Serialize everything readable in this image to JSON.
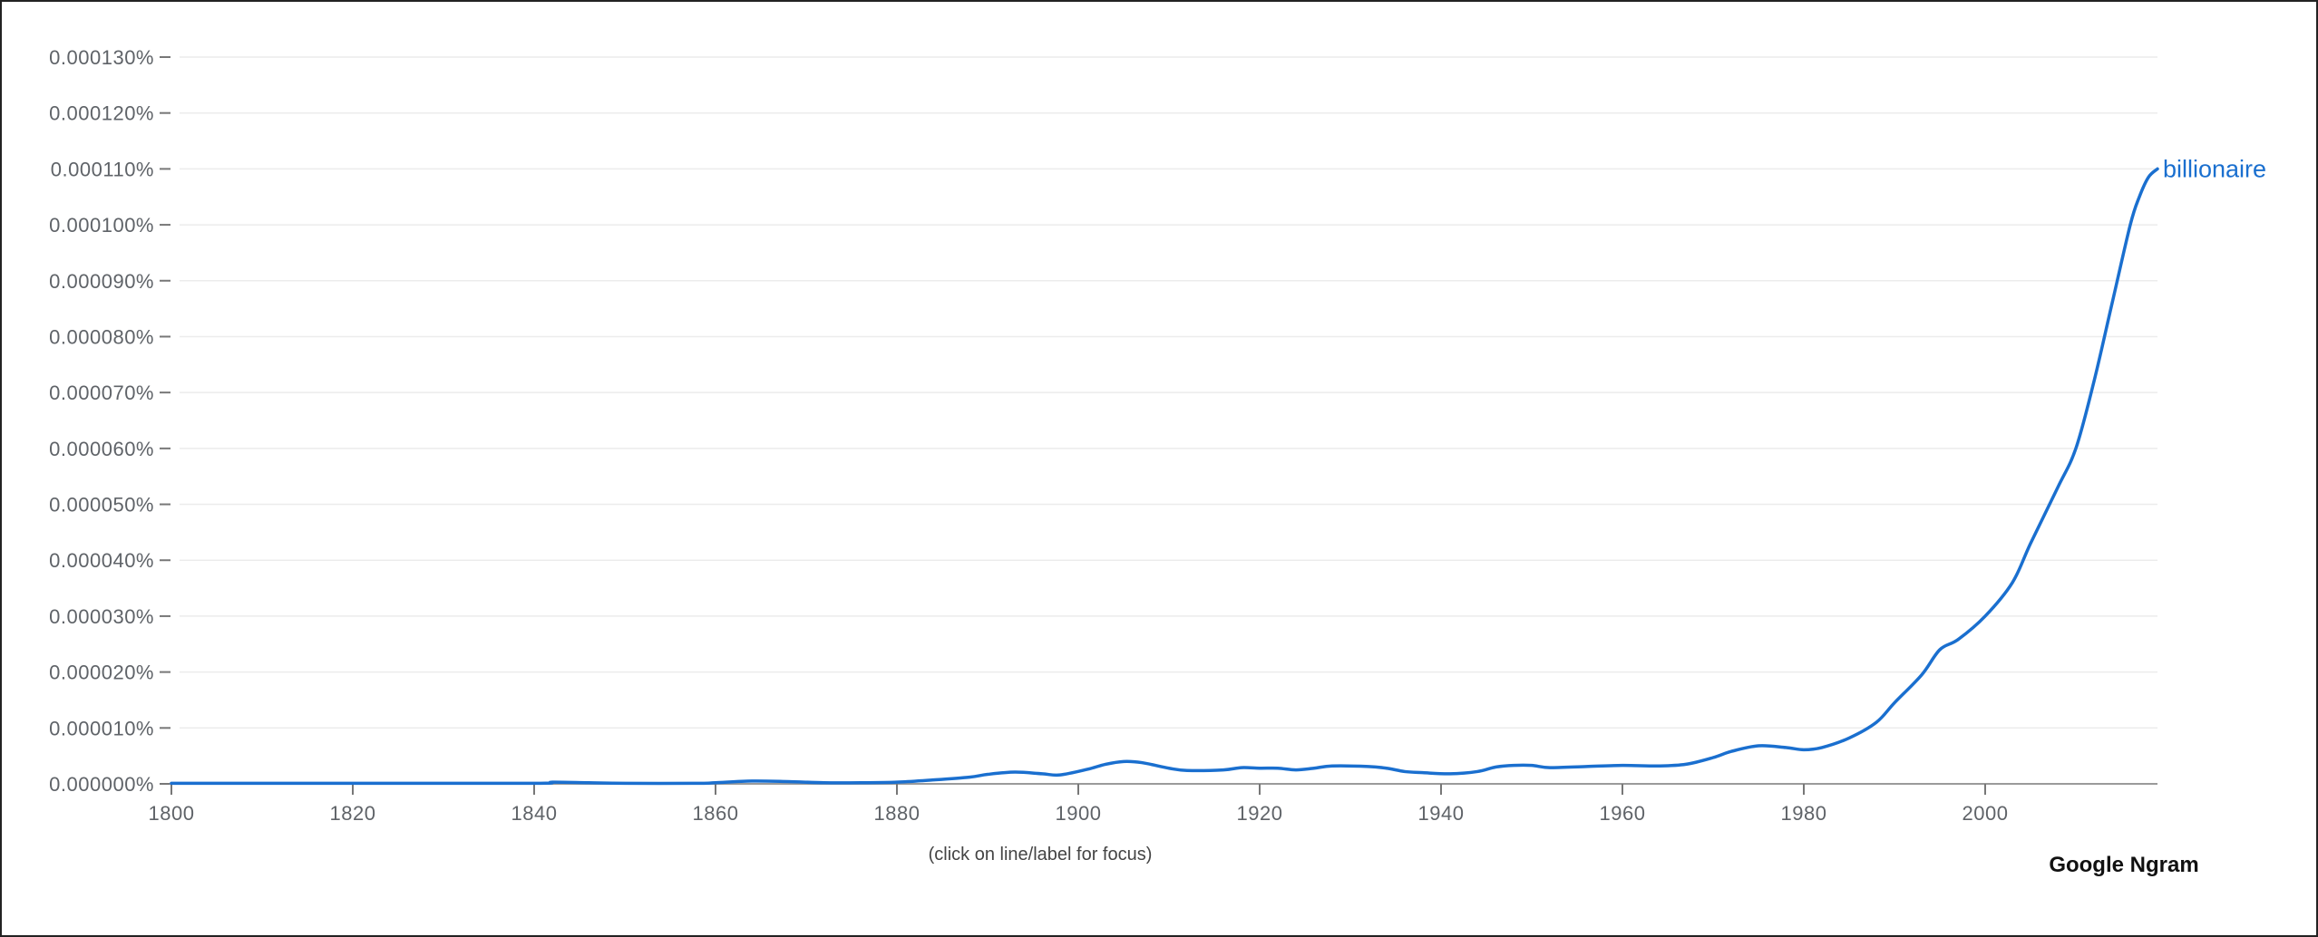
{
  "chart_data": {
    "type": "line",
    "title": "",
    "xlabel": "",
    "ylabel": "",
    "xlim": [
      1800,
      2019
    ],
    "ylim": [
      0,
      0.00013
    ],
    "y_unit": "%",
    "y_ticks": [
      0,
      1e-05,
      2e-05,
      3e-05,
      4e-05,
      5e-05,
      6e-05,
      7e-05,
      8e-05,
      9e-05,
      0.0001,
      0.00011,
      0.00012,
      0.00013
    ],
    "y_tick_labels": [
      "0.000000%",
      "0.000010%",
      "0.000020%",
      "0.000030%",
      "0.000040%",
      "0.000050%",
      "0.000060%",
      "0.000070%",
      "0.000080%",
      "0.000090%",
      "0.000100%",
      "0.000110%",
      "0.000120%",
      "0.000130%"
    ],
    "x_ticks": [
      1800,
      1820,
      1840,
      1860,
      1880,
      1900,
      1920,
      1940,
      1960,
      1980,
      2000
    ],
    "x_tick_labels": [
      "1800",
      "1820",
      "1840",
      "1860",
      "1880",
      "1900",
      "1920",
      "1940",
      "1960",
      "1980",
      "2000"
    ],
    "grid": true,
    "legend_placement": "end-of-line",
    "series": [
      {
        "name": "billionaire",
        "color": "#1a6fcf",
        "points": [
          [
            1800,
            1e-07
          ],
          [
            1820,
            1e-07
          ],
          [
            1840,
            1e-07
          ],
          [
            1842,
            3e-07
          ],
          [
            1846,
            2e-07
          ],
          [
            1850,
            1e-07
          ],
          [
            1858,
            1e-07
          ],
          [
            1860,
            2e-07
          ],
          [
            1864,
            5e-07
          ],
          [
            1868,
            4e-07
          ],
          [
            1872,
            2e-07
          ],
          [
            1876,
            2e-07
          ],
          [
            1880,
            3e-07
          ],
          [
            1884,
            7e-07
          ],
          [
            1888,
            1.2e-06
          ],
          [
            1890,
            1.7e-06
          ],
          [
            1893,
            2.1e-06
          ],
          [
            1896,
            1.8e-06
          ],
          [
            1898,
            1.6e-06
          ],
          [
            1901,
            2.6e-06
          ],
          [
            1903,
            3.5e-06
          ],
          [
            1905,
            4e-06
          ],
          [
            1907,
            3.8e-06
          ],
          [
            1910,
            2.8e-06
          ],
          [
            1912,
            2.4e-06
          ],
          [
            1916,
            2.5e-06
          ],
          [
            1918,
            2.9e-06
          ],
          [
            1920,
            2.8e-06
          ],
          [
            1922,
            2.8e-06
          ],
          [
            1924,
            2.5e-06
          ],
          [
            1926,
            2.8e-06
          ],
          [
            1928,
            3.2e-06
          ],
          [
            1932,
            3.1e-06
          ],
          [
            1934,
            2.8e-06
          ],
          [
            1936,
            2.2e-06
          ],
          [
            1938,
            2e-06
          ],
          [
            1941,
            1.8e-06
          ],
          [
            1944,
            2.2e-06
          ],
          [
            1946,
            3e-06
          ],
          [
            1948,
            3.3e-06
          ],
          [
            1950,
            3.3e-06
          ],
          [
            1952,
            2.9e-06
          ],
          [
            1956,
            3.1e-06
          ],
          [
            1960,
            3.3e-06
          ],
          [
            1964,
            3.2e-06
          ],
          [
            1967,
            3.5e-06
          ],
          [
            1970,
            4.7e-06
          ],
          [
            1972,
            5.8e-06
          ],
          [
            1975,
            6.8e-06
          ],
          [
            1978,
            6.5e-06
          ],
          [
            1980,
            6.1e-06
          ],
          [
            1982,
            6.5e-06
          ],
          [
            1985,
            8.2e-06
          ],
          [
            1988,
            1.1e-05
          ],
          [
            1990,
            1.45e-05
          ],
          [
            1993,
            1.95e-05
          ],
          [
            1995,
            2.4e-05
          ],
          [
            1997,
            2.58e-05
          ],
          [
            2000,
            3e-05
          ],
          [
            2003,
            3.6e-05
          ],
          [
            2005,
            4.3e-05
          ],
          [
            2008,
            5.3e-05
          ],
          [
            2010,
            6e-05
          ],
          [
            2012,
            7.2e-05
          ],
          [
            2014,
            8.6e-05
          ],
          [
            2016,
            0.0001
          ],
          [
            2017,
            0.000105
          ],
          [
            2018,
            0.0001085
          ],
          [
            2019,
            0.00011
          ]
        ]
      }
    ],
    "hint": "(click on line/label for focus)",
    "brand": "Google Ngram"
  }
}
